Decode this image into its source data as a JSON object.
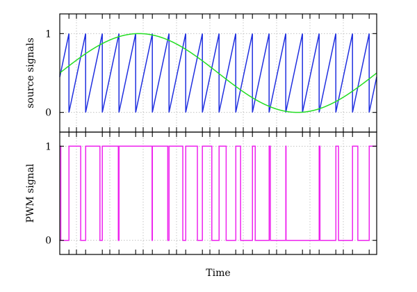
{
  "chart_data": [
    {
      "type": "line",
      "ylabel": "source signals",
      "xlabel": "",
      "xlim": [
        0,
        19
      ],
      "ylim": [
        -0.25,
        1.25
      ],
      "yticks": [
        0,
        1
      ],
      "ytick_labels": [
        "0",
        "1"
      ],
      "x_gridlines": [
        1,
        3,
        5,
        7,
        9,
        11,
        13,
        15,
        17
      ],
      "grid": true,
      "series": [
        {
          "kind": "sawtooth",
          "color": "#1f2fe0",
          "period": 1,
          "first_reset": 0.55,
          "min": 0,
          "max": 1
        },
        {
          "kind": "sine",
          "color": "#22dd22",
          "offset": 0.5,
          "amplitude": 0.5,
          "period": 19,
          "phase": 0
        }
      ]
    },
    {
      "type": "line",
      "ylabel": "PWM signal",
      "xlabel": "Time",
      "xlim": [
        0,
        19
      ],
      "ylim": [
        -0.15,
        1.15
      ],
      "yticks": [
        0,
        1
      ],
      "ytick_labels": [
        "0",
        "1"
      ],
      "x_gridlines": [
        1,
        3,
        5,
        7,
        9,
        11,
        13,
        15,
        17
      ],
      "grid": true,
      "series": [
        {
          "kind": "pwm",
          "color": "#ee22ee",
          "derived_from": "sine > sawtooth"
        }
      ]
    }
  ]
}
